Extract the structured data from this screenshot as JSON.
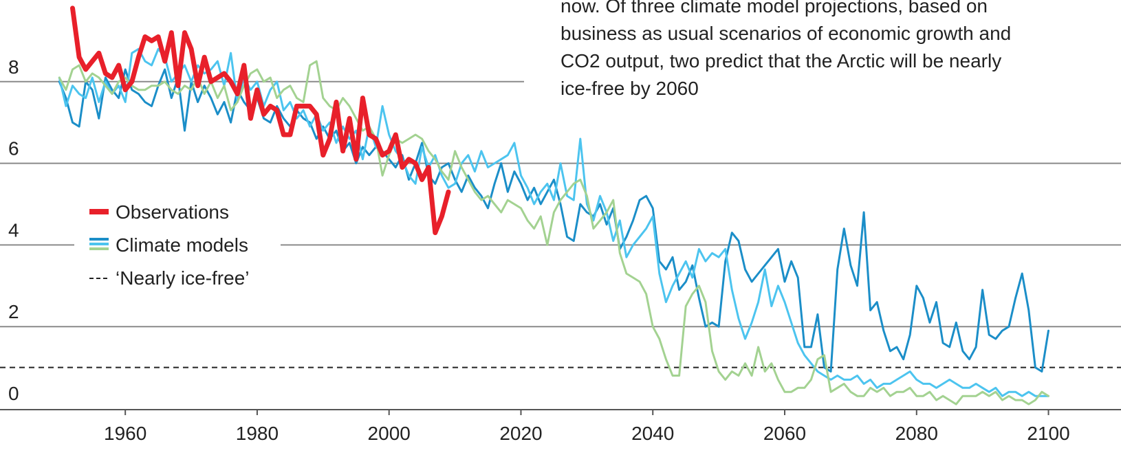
{
  "chart_data": {
    "type": "line",
    "annotation_lines": [
      "now. Of three climate model projections, based on",
      "business as usual scenarios of economic growth and",
      "CO2 output, two predict that the Arctic will be nearly",
      "ice-free by 2060"
    ],
    "x": [
      1950,
      1951,
      1952,
      1953,
      1954,
      1955,
      1956,
      1957,
      1958,
      1959,
      1960,
      1961,
      1962,
      1963,
      1964,
      1965,
      1966,
      1967,
      1968,
      1969,
      1970,
      1971,
      1972,
      1973,
      1974,
      1975,
      1976,
      1977,
      1978,
      1979,
      1980,
      1981,
      1982,
      1983,
      1984,
      1985,
      1986,
      1987,
      1988,
      1989,
      1990,
      1991,
      1992,
      1993,
      1994,
      1995,
      1996,
      1997,
      1998,
      1999,
      2000,
      2001,
      2002,
      2003,
      2004,
      2005,
      2006,
      2007,
      2008,
      2009,
      2010,
      2011,
      2012,
      2013,
      2014,
      2015,
      2016,
      2017,
      2018,
      2019,
      2020,
      2021,
      2022,
      2023,
      2024,
      2025,
      2026,
      2027,
      2028,
      2029,
      2030,
      2031,
      2032,
      2033,
      2034,
      2035,
      2036,
      2037,
      2038,
      2039,
      2040,
      2041,
      2042,
      2043,
      2044,
      2045,
      2046,
      2047,
      2048,
      2049,
      2050,
      2051,
      2052,
      2053,
      2054,
      2055,
      2056,
      2057,
      2058,
      2059,
      2060,
      2061,
      2062,
      2063,
      2064,
      2065,
      2066,
      2067,
      2068,
      2069,
      2070,
      2071,
      2072,
      2073,
      2074,
      2075,
      2076,
      2077,
      2078,
      2079,
      2080,
      2081,
      2082,
      2083,
      2084,
      2085,
      2086,
      2087,
      2088,
      2089,
      2090,
      2091,
      2092,
      2093,
      2094,
      2095,
      2096,
      2097,
      2098,
      2099,
      2100
    ],
    "series": [
      {
        "color": "#1b8ec8",
        "values": [
          8.0,
          7.6,
          7.0,
          6.9,
          8.0,
          7.8,
          7.1,
          8.1,
          7.8,
          7.6,
          8.3,
          7.8,
          7.7,
          7.5,
          7.4,
          7.9,
          8.3,
          7.6,
          8.1,
          6.8,
          8.0,
          7.5,
          7.9,
          7.6,
          7.2,
          7.5,
          7.0,
          7.8,
          7.5,
          7.3,
          7.6,
          7.1,
          7.0,
          7.4,
          7.1,
          6.9,
          7.3,
          7.1,
          7.0,
          6.6,
          6.9,
          6.6,
          6.8,
          6.3,
          6.5,
          6.0,
          6.4,
          6.2,
          6.4,
          6.3,
          6.1,
          5.9,
          6.2,
          5.6,
          6.0,
          6.5,
          5.7,
          5.5,
          5.9,
          6.0,
          5.6,
          5.3,
          5.7,
          5.4,
          5.2,
          4.9,
          5.5,
          6.0,
          5.3,
          5.8,
          5.5,
          5.1,
          5.4,
          5.0,
          5.3,
          5.6,
          5.0,
          4.2,
          4.1,
          5.0,
          4.8,
          4.7,
          5.0,
          4.5,
          4.9,
          3.9,
          4.2,
          4.6,
          5.1,
          5.2,
          4.9,
          3.6,
          3.4,
          3.7,
          2.9,
          3.1,
          3.5,
          2.7,
          2.0,
          2.1,
          2.0,
          3.6,
          4.3,
          4.1,
          3.4,
          3.1,
          3.3,
          3.5,
          3.7,
          3.9,
          3.1,
          3.6,
          3.2,
          1.5,
          1.5,
          2.3,
          1.0,
          0.9,
          3.4,
          4.4,
          3.5,
          3.0,
          4.8,
          2.4,
          2.6,
          1.9,
          1.4,
          1.5,
          1.2,
          1.8,
          3.0,
          2.7,
          2.1,
          2.6,
          1.6,
          1.5,
          2.1,
          1.4,
          1.2,
          1.5,
          2.9,
          1.8,
          1.7,
          1.9,
          2.0,
          2.7,
          3.3,
          2.4,
          1.0,
          0.9,
          1.9
        ]
      },
      {
        "color": "#4cc4ef",
        "values": [
          8.1,
          7.4,
          7.9,
          7.7,
          7.6,
          8.1,
          7.5,
          8.0,
          7.7,
          7.9,
          7.5,
          8.7,
          8.8,
          8.5,
          8.4,
          8.8,
          8.6,
          8.0,
          8.2,
          8.4,
          8.0,
          8.4,
          8.2,
          8.3,
          8.5,
          7.9,
          8.7,
          7.5,
          8.1,
          7.8,
          8.0,
          7.4,
          7.8,
          8.0,
          7.3,
          7.5,
          7.1,
          7.3,
          6.9,
          7.2,
          6.8,
          7.0,
          6.5,
          6.9,
          6.6,
          6.8,
          6.1,
          6.9,
          6.4,
          7.4,
          6.7,
          6.3,
          6.1,
          5.7,
          5.5,
          6.4,
          5.9,
          6.2,
          5.7,
          5.4,
          5.5,
          6.0,
          6.2,
          5.8,
          6.3,
          5.9,
          6.0,
          6.1,
          6.2,
          6.5,
          5.7,
          5.4,
          5.0,
          5.3,
          5.5,
          5.1,
          6.0,
          5.2,
          5.1,
          6.6,
          5.0,
          4.6,
          5.2,
          4.8,
          4.1,
          4.6,
          3.7,
          4.0,
          4.2,
          4.4,
          4.7,
          3.3,
          2.6,
          3.0,
          3.3,
          3.6,
          3.2,
          3.9,
          3.6,
          3.8,
          3.7,
          3.9,
          2.9,
          2.2,
          1.7,
          2.1,
          2.6,
          3.4,
          2.5,
          3.0,
          2.6,
          2.1,
          1.6,
          1.3,
          1.1,
          0.9,
          0.8,
          0.7,
          0.8,
          0.7,
          0.7,
          0.8,
          0.6,
          0.7,
          0.5,
          0.6,
          0.6,
          0.7,
          0.8,
          0.9,
          0.7,
          0.6,
          0.6,
          0.5,
          0.6,
          0.7,
          0.6,
          0.5,
          0.5,
          0.6,
          0.5,
          0.4,
          0.5,
          0.3,
          0.4,
          0.4,
          0.3,
          0.4,
          0.3,
          0.3,
          0.3
        ]
      },
      {
        "color": "#a3d291",
        "values": [
          8.1,
          7.8,
          8.3,
          8.4,
          8.0,
          8.2,
          8.1,
          7.9,
          7.7,
          8.0,
          8.1,
          7.9,
          7.8,
          7.8,
          7.9,
          7.9,
          8.0,
          7.8,
          7.7,
          7.9,
          7.8,
          8.1,
          7.7,
          8.0,
          7.6,
          7.9,
          7.3,
          7.5,
          7.9,
          8.2,
          8.3,
          8.0,
          8.1,
          7.6,
          7.8,
          7.9,
          7.6,
          7.5,
          8.4,
          8.5,
          7.6,
          7.4,
          7.3,
          7.6,
          7.4,
          7.1,
          6.8,
          6.9,
          6.6,
          5.7,
          6.2,
          6.6,
          6.5,
          6.6,
          6.7,
          6.6,
          6.3,
          6.1,
          5.8,
          5.6,
          6.3,
          5.9,
          5.6,
          5.3,
          5.1,
          5.2,
          5.0,
          4.8,
          5.1,
          5.0,
          4.9,
          4.6,
          4.4,
          4.7,
          4.0,
          4.8,
          5.1,
          5.3,
          5.5,
          5.6,
          5.2,
          4.4,
          4.6,
          4.8,
          5.1,
          3.8,
          3.3,
          3.2,
          3.1,
          2.8,
          2.0,
          1.7,
          1.2,
          0.8,
          0.8,
          2.5,
          2.8,
          3.0,
          2.6,
          1.4,
          0.9,
          0.7,
          0.9,
          0.8,
          1.1,
          0.8,
          1.5,
          0.9,
          1.1,
          0.7,
          0.4,
          0.4,
          0.5,
          0.5,
          0.7,
          1.2,
          1.3,
          0.4,
          0.5,
          0.6,
          0.4,
          0.3,
          0.3,
          0.5,
          0.4,
          0.5,
          0.3,
          0.4,
          0.4,
          0.5,
          0.3,
          0.3,
          0.4,
          0.2,
          0.3,
          0.2,
          0.1,
          0.3,
          0.3,
          0.3,
          0.4,
          0.3,
          0.4,
          0.2,
          0.3,
          0.2,
          0.2,
          0.1,
          0.2,
          0.4,
          0.3
        ]
      },
      {
        "name": "Observations",
        "color": "#e8202a",
        "x": [
          1952,
          1953,
          1954,
          1955,
          1956,
          1957,
          1958,
          1959,
          1960,
          1961,
          1962,
          1963,
          1964,
          1965,
          1966,
          1967,
          1968,
          1969,
          1970,
          1971,
          1972,
          1973,
          1974,
          1975,
          1976,
          1977,
          1978,
          1979,
          1980,
          1981,
          1982,
          1983,
          1984,
          1985,
          1986,
          1987,
          1988,
          1989,
          1990,
          1991,
          1992,
          1993,
          1994,
          1995,
          1996,
          1997,
          1998,
          1999,
          2000,
          2001,
          2002,
          2003,
          2004,
          2005,
          2006,
          2007,
          2008,
          2009
        ],
        "values": [
          9.8,
          8.6,
          8.3,
          8.5,
          8.7,
          8.2,
          8.1,
          8.4,
          7.8,
          8.0,
          8.6,
          9.1,
          9.0,
          9.1,
          8.5,
          9.2,
          7.9,
          9.2,
          8.8,
          7.9,
          8.6,
          8.0,
          8.1,
          8.2,
          8.0,
          7.7,
          8.4,
          7.1,
          7.8,
          7.2,
          7.4,
          7.3,
          6.7,
          6.7,
          7.4,
          7.4,
          7.4,
          7.2,
          6.2,
          6.6,
          7.5,
          6.3,
          7.1,
          6.1,
          7.6,
          6.7,
          6.6,
          6.2,
          6.3,
          6.7,
          5.9,
          6.1,
          6.0,
          5.6,
          5.9,
          4.3,
          4.7,
          5.3
        ]
      }
    ],
    "legend_models": "Climate models",
    "threshold": {
      "value": 1,
      "label": "‘Nearly ice-free’"
    },
    "xlim": [
      1941,
      2111
    ],
    "xticks": [
      1960,
      1980,
      2000,
      2020,
      2040,
      2060,
      2080,
      2100
    ],
    "ylim": [
      0,
      10
    ],
    "yticks": [
      0,
      2,
      4,
      6,
      8
    ],
    "grid": true
  }
}
